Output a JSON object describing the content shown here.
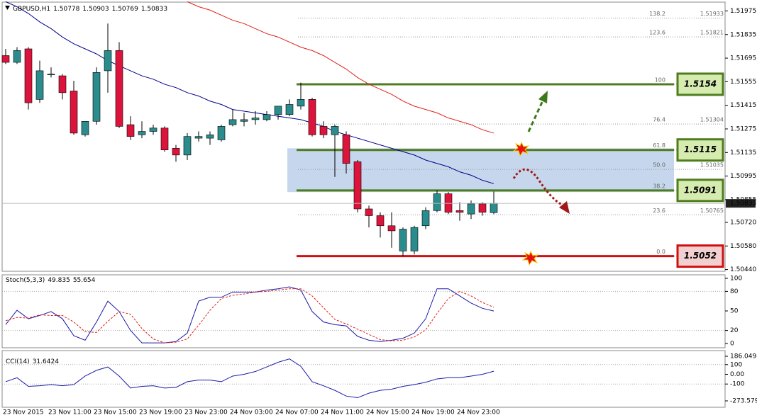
{
  "chart_data": [
    {
      "type": "candlestick",
      "symbol": "GBPUSD,H1",
      "up_color": "#2a8c8c",
      "down_color": "#dc143c",
      "categories": [
        "23 Nov 2015",
        null,
        null,
        null,
        "23 Nov 11:00",
        null,
        null,
        null,
        "23 Nov 15:00",
        null,
        null,
        null,
        "23 Nov 19:00",
        null,
        null,
        null,
        "23 Nov 23:00",
        null,
        null,
        null,
        "24 Nov 03:00",
        null,
        null,
        null,
        "24 Nov 07:00",
        null,
        null,
        null,
        "24 Nov 11:00",
        null,
        null,
        null,
        "24 Nov 15:00",
        null,
        null,
        null,
        "24 Nov 19:00",
        null,
        null,
        null,
        "24 Nov 23:00",
        null,
        null,
        null
      ],
      "open": [
        1.5171,
        1.5167,
        1.5175,
        1.5145,
        1.516,
        1.5159,
        1.515,
        1.5124,
        1.5132,
        1.5162,
        1.5174,
        1.513,
        1.5124,
        1.5126,
        1.5128,
        1.5116,
        1.5112,
        1.5122,
        1.5122,
        1.5121,
        1.513,
        1.5132,
        1.5133,
        1.5133,
        1.5136,
        1.5136,
        1.5141,
        1.5145,
        1.5129,
        1.5124,
        1.5124,
        1.5108,
        1.508,
        1.5076,
        1.507,
        1.5055,
        1.5055,
        1.507,
        1.5079,
        1.5089,
        1.5079,
        1.5077,
        1.5083,
        1.50778
      ],
      "high": [
        1.5175,
        1.5176,
        1.5176,
        1.5168,
        1.5164,
        1.516,
        1.5156,
        1.5132,
        1.5164,
        1.519,
        1.5179,
        1.5135,
        1.5132,
        1.513,
        1.5129,
        1.5118,
        1.5125,
        1.5126,
        1.5126,
        1.513,
        1.5139,
        1.5137,
        1.5138,
        1.5138,
        1.5141,
        1.5145,
        1.5155,
        1.5146,
        1.5132,
        1.513,
        1.5126,
        1.5109,
        1.5082,
        1.5078,
        1.5078,
        1.5069,
        1.507,
        1.5081,
        1.5091,
        1.509,
        1.5084,
        1.5085,
        1.5084,
        1.50903
      ],
      "low": [
        1.5166,
        1.5166,
        1.5139,
        1.5143,
        1.5158,
        1.5145,
        1.5124,
        1.5123,
        1.513,
        1.5149,
        1.5128,
        1.5121,
        1.5122,
        1.5124,
        1.5114,
        1.5108,
        1.5109,
        1.512,
        1.5118,
        1.512,
        1.5129,
        1.5129,
        1.513,
        1.5132,
        1.5133,
        1.5135,
        1.5139,
        1.5123,
        1.5122,
        1.5099,
        1.5101,
        1.5078,
        1.5069,
        1.5063,
        1.5057,
        1.5052,
        1.5053,
        1.5068,
        1.5078,
        1.5077,
        1.5073,
        1.5074,
        1.5076,
        1.50769
      ],
      "close": [
        1.5167,
        1.5174,
        1.5143,
        1.5162,
        1.516,
        1.5149,
        1.5125,
        1.5132,
        1.5161,
        1.5174,
        1.5129,
        1.5123,
        1.5126,
        1.5128,
        1.5115,
        1.5112,
        1.5123,
        1.5123,
        1.5124,
        1.5129,
        1.5133,
        1.5133,
        1.5134,
        1.5136,
        1.5141,
        1.5142,
        1.5145,
        1.5124,
        1.5124,
        1.5129,
        1.5107,
        1.508,
        1.5076,
        1.507,
        1.5067,
        1.5068,
        1.5069,
        1.5079,
        1.5089,
        1.5078,
        1.5078,
        1.5083,
        1.5078,
        1.50833
      ],
      "series": [
        {
          "color": "#00008b",
          "values": [
            1.5203,
            1.52,
            1.5196,
            1.5191,
            1.5187,
            1.5182,
            1.5178,
            1.5175,
            1.5172,
            1.5168,
            1.5165,
            1.5162,
            1.5159,
            1.5157,
            1.5154,
            1.5152,
            1.5149,
            1.5147,
            1.5144,
            1.5142,
            1.5139,
            1.5138,
            1.5137,
            1.5136,
            1.5135,
            1.5134,
            1.5133,
            1.5131,
            1.5129,
            1.5126,
            1.5124,
            1.5122,
            1.512,
            1.5118,
            1.5116,
            1.5114,
            1.5112,
            1.5109,
            1.5107,
            1.5105,
            1.5102,
            1.51,
            1.5097,
            1.5095
          ]
        },
        {
          "color": "#e0201a",
          "values": [
            null,
            null,
            null,
            null,
            null,
            null,
            null,
            null,
            null,
            null,
            null,
            null,
            null,
            null,
            null,
            null,
            1.5203,
            1.52,
            1.5198,
            1.5195,
            1.5192,
            1.519,
            1.5187,
            1.5184,
            1.5182,
            1.5179,
            1.5176,
            1.5174,
            1.5171,
            1.5167,
            1.5163,
            1.5158,
            1.5154,
            1.5151,
            1.5148,
            1.5144,
            1.5141,
            1.5139,
            1.5137,
            1.5134,
            1.5132,
            1.513,
            1.5127,
            1.5125
          ]
        }
      ],
      "ylim": [
        1.5043,
        1.5204
      ],
      "yticks": [
        1.51975,
        1.51835,
        1.51695,
        1.51555,
        1.51415,
        1.51275,
        1.51135,
        1.50995,
        1.50855,
        {
          "value": 1.5072,
          "label": "1.50720"
        },
        {
          "value": 1.5058,
          "label": "1.50580"
        },
        {
          "value": 1.5044,
          "label": "1.50440"
        }
      ],
      "fib": [
        {
          "ratio": 138.2,
          "price": 1.51933
        },
        {
          "ratio": 123.6,
          "price": 1.51821
        },
        {
          "ratio": 100,
          "price": 1.5154,
          "color": "#4e7d1e"
        },
        {
          "ratio": 76.4,
          "price": 1.51304
        },
        {
          "ratio": 61.8,
          "price": 1.5115,
          "color": "#4e7d1e"
        },
        {
          "ratio": {
            "value": 50,
            "label": "50.0"
          },
          "price": 1.51035
        },
        {
          "ratio": 38.2,
          "price": 1.5091,
          "color": "#4e7d1e"
        },
        {
          "ratio": 23.6,
          "price": 1.50765
        },
        {
          "ratio": {
            "value": 0,
            "label": "0.0"
          },
          "price": 1.5052,
          "color": "#d01010"
        }
      ],
      "zone": {
        "range": [
          1.5116,
          1.509
        ],
        "color": "#b8cde8"
      }
    },
    {
      "type": "line",
      "title": "Stoch(5,3,3)",
      "series": [
        {
          "color": "#1a1aa8",
          "dash": false,
          "values": [
            29,
            51,
            38,
            43,
            49,
            38,
            12,
            5,
            33,
            65,
            49,
            20,
            1,
            1,
            1,
            3,
            16,
            65,
            71,
            71,
            79,
            79,
            79,
            82,
            84,
            87,
            82,
            49,
            33,
            29,
            27,
            11,
            5,
            3,
            5,
            8,
            16,
            38,
            84,
            84,
            73,
            62,
            54,
            49.835
          ]
        },
        {
          "color": "#e0201a",
          "dash": true,
          "values": [
            35,
            40,
            39,
            44,
            43,
            43,
            33,
            18,
            17,
            34,
            49,
            45,
            23,
            7,
            1,
            2,
            7,
            28,
            51,
            69,
            74,
            76,
            79,
            80,
            82,
            84,
            84,
            73,
            55,
            37,
            30,
            22,
            14,
            6,
            4,
            5,
            10,
            21,
            46,
            69,
            80,
            73,
            63,
            55.654
          ]
        }
      ],
      "ylim": [
        0,
        100
      ],
      "yticks": [
        100,
        80,
        50,
        20,
        0
      ],
      "levels": [
        80,
        20
      ]
    },
    {
      "type": "line",
      "title": "CCI(14)",
      "series": [
        {
          "color": "#1a1aa8",
          "dash": false,
          "values": [
            -76,
            -35,
            -124,
            -118,
            -106,
            -118,
            -106,
            -18,
            41,
            76,
            -18,
            -141,
            -124,
            -118,
            -141,
            -135,
            -76,
            -59,
            -59,
            -76,
            -18,
            0,
            29,
            76,
            124,
            159,
            82,
            -76,
            -118,
            -165,
            -224,
            -241,
            -194,
            -165,
            -153,
            -124,
            -106,
            -82,
            -47,
            -35,
            -35,
            -18,
            0,
            31.6424
          ]
        }
      ],
      "ylim": [
        -273.5791,
        186.0498
      ],
      "yticks": [
        186.0498,
        100,
        {
          "value": 0,
          "label": "0.00"
        },
        -100,
        -273.5791
      ],
      "levels": [
        100,
        -100
      ]
    }
  ]
}
